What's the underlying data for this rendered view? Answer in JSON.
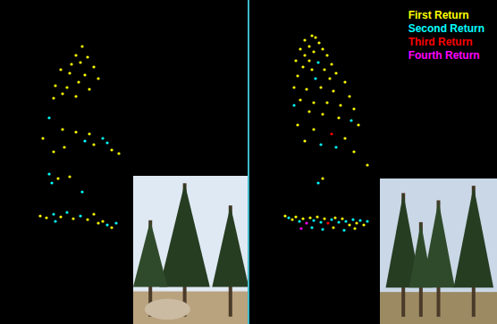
{
  "chart_data": [
    {
      "type": "scatter",
      "xlim": [
        0,
        277
      ],
      "ylim": [
        0,
        363
      ],
      "tick_labels": false,
      "grid": false,
      "series": [
        {
          "name": "First Return",
          "color": "#ffff00",
          "marker": "circle",
          "x": [
            92,
            85,
            98,
            80,
            90,
            105,
            68,
            78,
            95,
            110,
            62,
            75,
            88,
            100,
            70,
            85,
            60,
            48,
            70,
            85,
            100,
            105,
            125,
            72,
            60,
            133,
            65,
            78,
            45,
            52,
            68,
            82,
            98,
            105,
            110,
            115,
            125
          ],
          "y": [
            311,
            301,
            299,
            291,
            293,
            288,
            285,
            281,
            279,
            275,
            267,
            265,
            271,
            263,
            258,
            255,
            253,
            208,
            218,
            215,
            213,
            201,
            195,
            198,
            193,
            191,
            163,
            165,
            121,
            119,
            120,
            118,
            117,
            123,
            113,
            115,
            108
          ]
        },
        {
          "name": "Second Return",
          "color": "#00ffff",
          "marker": "circle",
          "x": [
            55,
            115,
            120,
            95,
            55,
            58,
            92,
            60,
            75,
            90,
            120,
            130,
            62
          ],
          "y": [
            231,
            208,
            203,
            205,
            168,
            158,
            148,
            123,
            125,
            121,
            111,
            113,
            115
          ]
        }
      ]
    },
    {
      "type": "scatter",
      "xlim": [
        0,
        277
      ],
      "ylim": [
        0,
        363
      ],
      "tick_labels": false,
      "grid": false,
      "legend": "upper right",
      "series": [
        {
          "name": "First Return",
          "color": "#ffff00",
          "marker": "circle",
          "x": [
            70,
            74,
            62,
            78,
            67,
            57,
            82,
            72,
            62,
            87,
            52,
            67,
            92,
            60,
            70,
            84,
            97,
            54,
            90,
            107,
            50,
            64,
            80,
            94,
            112,
            57,
            72,
            87,
            102,
            117,
            67,
            82,
            100,
            122,
            54,
            72,
            107,
            62,
            117,
            132,
            82,
            40,
            48,
            52,
            60,
            68,
            76,
            84,
            96,
            104,
            112,
            120,
            128,
            94,
            118
          ],
          "y": [
            323,
            321,
            318,
            315,
            311,
            308,
            308,
            305,
            301,
            301,
            295,
            295,
            291,
            288,
            285,
            285,
            281,
            278,
            275,
            271,
            265,
            263,
            265,
            261,
            255,
            251,
            248,
            248,
            245,
            241,
            238,
            235,
            231,
            223,
            223,
            218,
            208,
            205,
            193,
            178,
            163,
            121,
            117,
            120,
            118,
            119,
            120,
            118,
            119,
            118,
            111,
            113,
            111,
            108,
            107
          ]
        },
        {
          "name": "Second Return",
          "color": "#00ffff",
          "marker": "circle",
          "x": [
            77,
            74,
            50,
            114,
            80,
            97,
            77,
            44,
            56,
            72,
            80,
            92,
            100,
            108,
            116,
            124,
            132,
            70,
            82,
            106
          ],
          "y": [
            293,
            275,
            245,
            228,
            201,
            198,
            158,
            119,
            115,
            116,
            114,
            117,
            114,
            115,
            117,
            116,
            115,
            108,
            106,
            105
          ]
        },
        {
          "name": "Third Return",
          "color": "#ff0000",
          "marker": "circle",
          "x": [
            92,
            88
          ],
          "y": [
            213,
            113
          ]
        },
        {
          "name": "Fourth Return",
          "color": "#ff00ff",
          "marker": "circle",
          "x": [
            64,
            58
          ],
          "y": [
            113,
            107
          ]
        }
      ]
    }
  ]
}
